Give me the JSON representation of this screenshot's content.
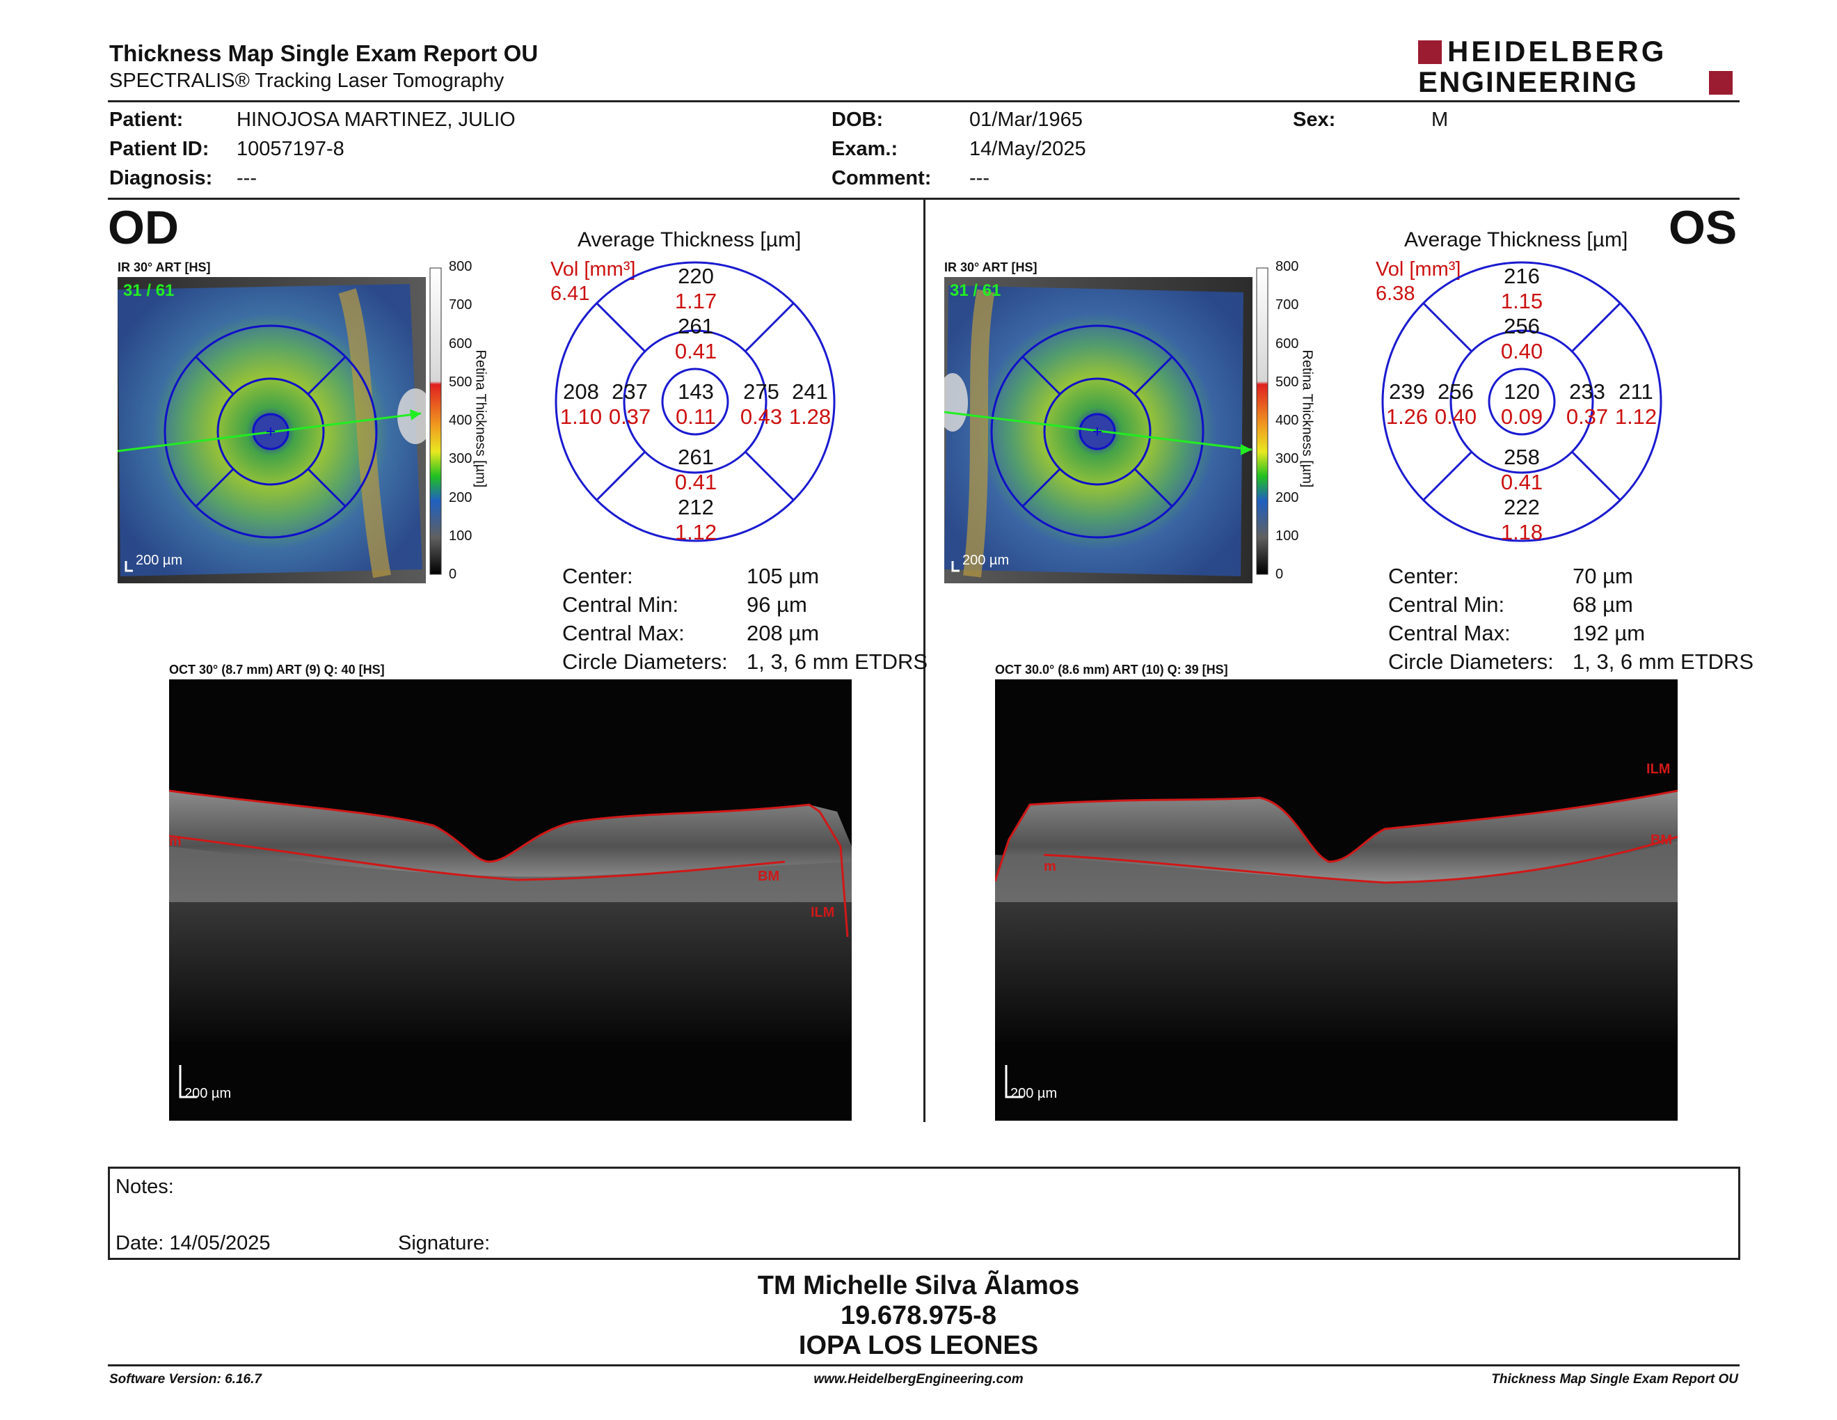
{
  "header": {
    "title": "Thickness Map Single Exam Report OU",
    "subtitle": "SPECTRALIS® Tracking Laser Tomography",
    "logo_line1": "HEIDELBERG",
    "logo_line2": "ENGINEERING"
  },
  "patient": {
    "patient_label": "Patient:",
    "patient_value": "HINOJOSA MARTINEZ, JULIO",
    "id_label": "Patient ID:",
    "id_value": "10057197-8",
    "diagnosis_label": "Diagnosis:",
    "diagnosis_value": "---",
    "dob_label": "DOB:",
    "dob_value": "01/Mar/1965",
    "exam_label": "Exam.:",
    "exam_value": "14/May/2025",
    "comment_label": "Comment:",
    "comment_value": "---",
    "sex_label": "Sex:",
    "sex_value": "M"
  },
  "scale": {
    "ticks": [
      "800",
      "700",
      "600",
      "500",
      "400",
      "300",
      "200",
      "100",
      "0"
    ],
    "title": "Retina Thickness [µm]"
  },
  "od": {
    "eye": "OD",
    "ir_label": "IR 30° ART [HS]",
    "frame": "31 / 61",
    "scalebar": "200 µm",
    "avg_title": "Average Thickness [µm]",
    "vol_label": "Vol [mm³]",
    "vol_value": "6.41",
    "grid": {
      "center": "143",
      "center_vol": "0.11",
      "inner_sup": "261",
      "inner_sup_vol": "0.41",
      "inner_inf": "261",
      "inner_inf_vol": "0.41",
      "inner_left": "237",
      "inner_left_vol": "0.37",
      "inner_right": "275",
      "inner_right_vol": "0.43",
      "outer_sup": "220",
      "outer_sup_vol": "1.17",
      "outer_inf": "212",
      "outer_inf_vol": "1.12",
      "outer_left": "208",
      "outer_left_vol": "1.10",
      "outer_right": "241",
      "outer_right_vol": "1.28"
    },
    "stats": {
      "center_label": "Center:",
      "center_value": "105 µm",
      "min_label": "Central Min:",
      "min_value": "96 µm",
      "max_label": "Central Max:",
      "max_value": "208 µm",
      "circ_label": "Circle Diameters:",
      "circ_value": "1, 3, 6 mm ETDRS"
    },
    "oct_label": "OCT 30° (8.7 mm) ART (9) Q: 40 [HS]",
    "oct_scalebar": "200 µm",
    "label_ilm": "ILM",
    "label_bm": "BM",
    "label_m": "m"
  },
  "os": {
    "eye": "OS",
    "ir_label": "IR 30° ART [HS]",
    "frame": "31 / 61",
    "scalebar": "200 µm",
    "avg_title": "Average Thickness [µm]",
    "vol_label": "Vol [mm³]",
    "vol_value": "6.38",
    "grid": {
      "center": "120",
      "center_vol": "0.09",
      "inner_sup": "256",
      "inner_sup_vol": "0.40",
      "inner_inf": "258",
      "inner_inf_vol": "0.41",
      "inner_left": "256",
      "inner_left_vol": "0.40",
      "inner_right": "233",
      "inner_right_vol": "0.37",
      "outer_sup": "216",
      "outer_sup_vol": "1.15",
      "outer_inf": "222",
      "outer_inf_vol": "1.18",
      "outer_left": "239",
      "outer_left_vol": "1.26",
      "outer_right": "211",
      "outer_right_vol": "1.12"
    },
    "stats": {
      "center_label": "Center:",
      "center_value": "70 µm",
      "min_label": "Central Min:",
      "min_value": "68 µm",
      "max_label": "Central Max:",
      "max_value": "192 µm",
      "circ_label": "Circle Diameters:",
      "circ_value": "1, 3, 6 mm ETDRS"
    },
    "oct_label": "OCT 30.0° (8.6 mm) ART (10) Q: 39 [HS]",
    "oct_scalebar": "200 µm",
    "label_ilm": "ILM",
    "label_bm": "BM",
    "label_m": "m"
  },
  "notes": {
    "notes_label": "Notes:",
    "date_label": "Date: 14/05/2025",
    "signature_label": "Signature:"
  },
  "signature_block": {
    "line1": "TM Michelle Silva Ãlamos",
    "line2": "19.678.975-8",
    "line3": "IOPA LOS LEONES"
  },
  "footer": {
    "version": "Software Version: 6.16.7",
    "website": "www.HeidelbergEngineering.com",
    "report": "Thickness Map Single Exam Report OU"
  },
  "colors": {
    "accent_red": "#cc1010",
    "logo_red": "#9b1b30",
    "grid_blue": "#1a1ad0",
    "bscan_line": "#d01818",
    "scan_arrow": "#22ee22"
  }
}
